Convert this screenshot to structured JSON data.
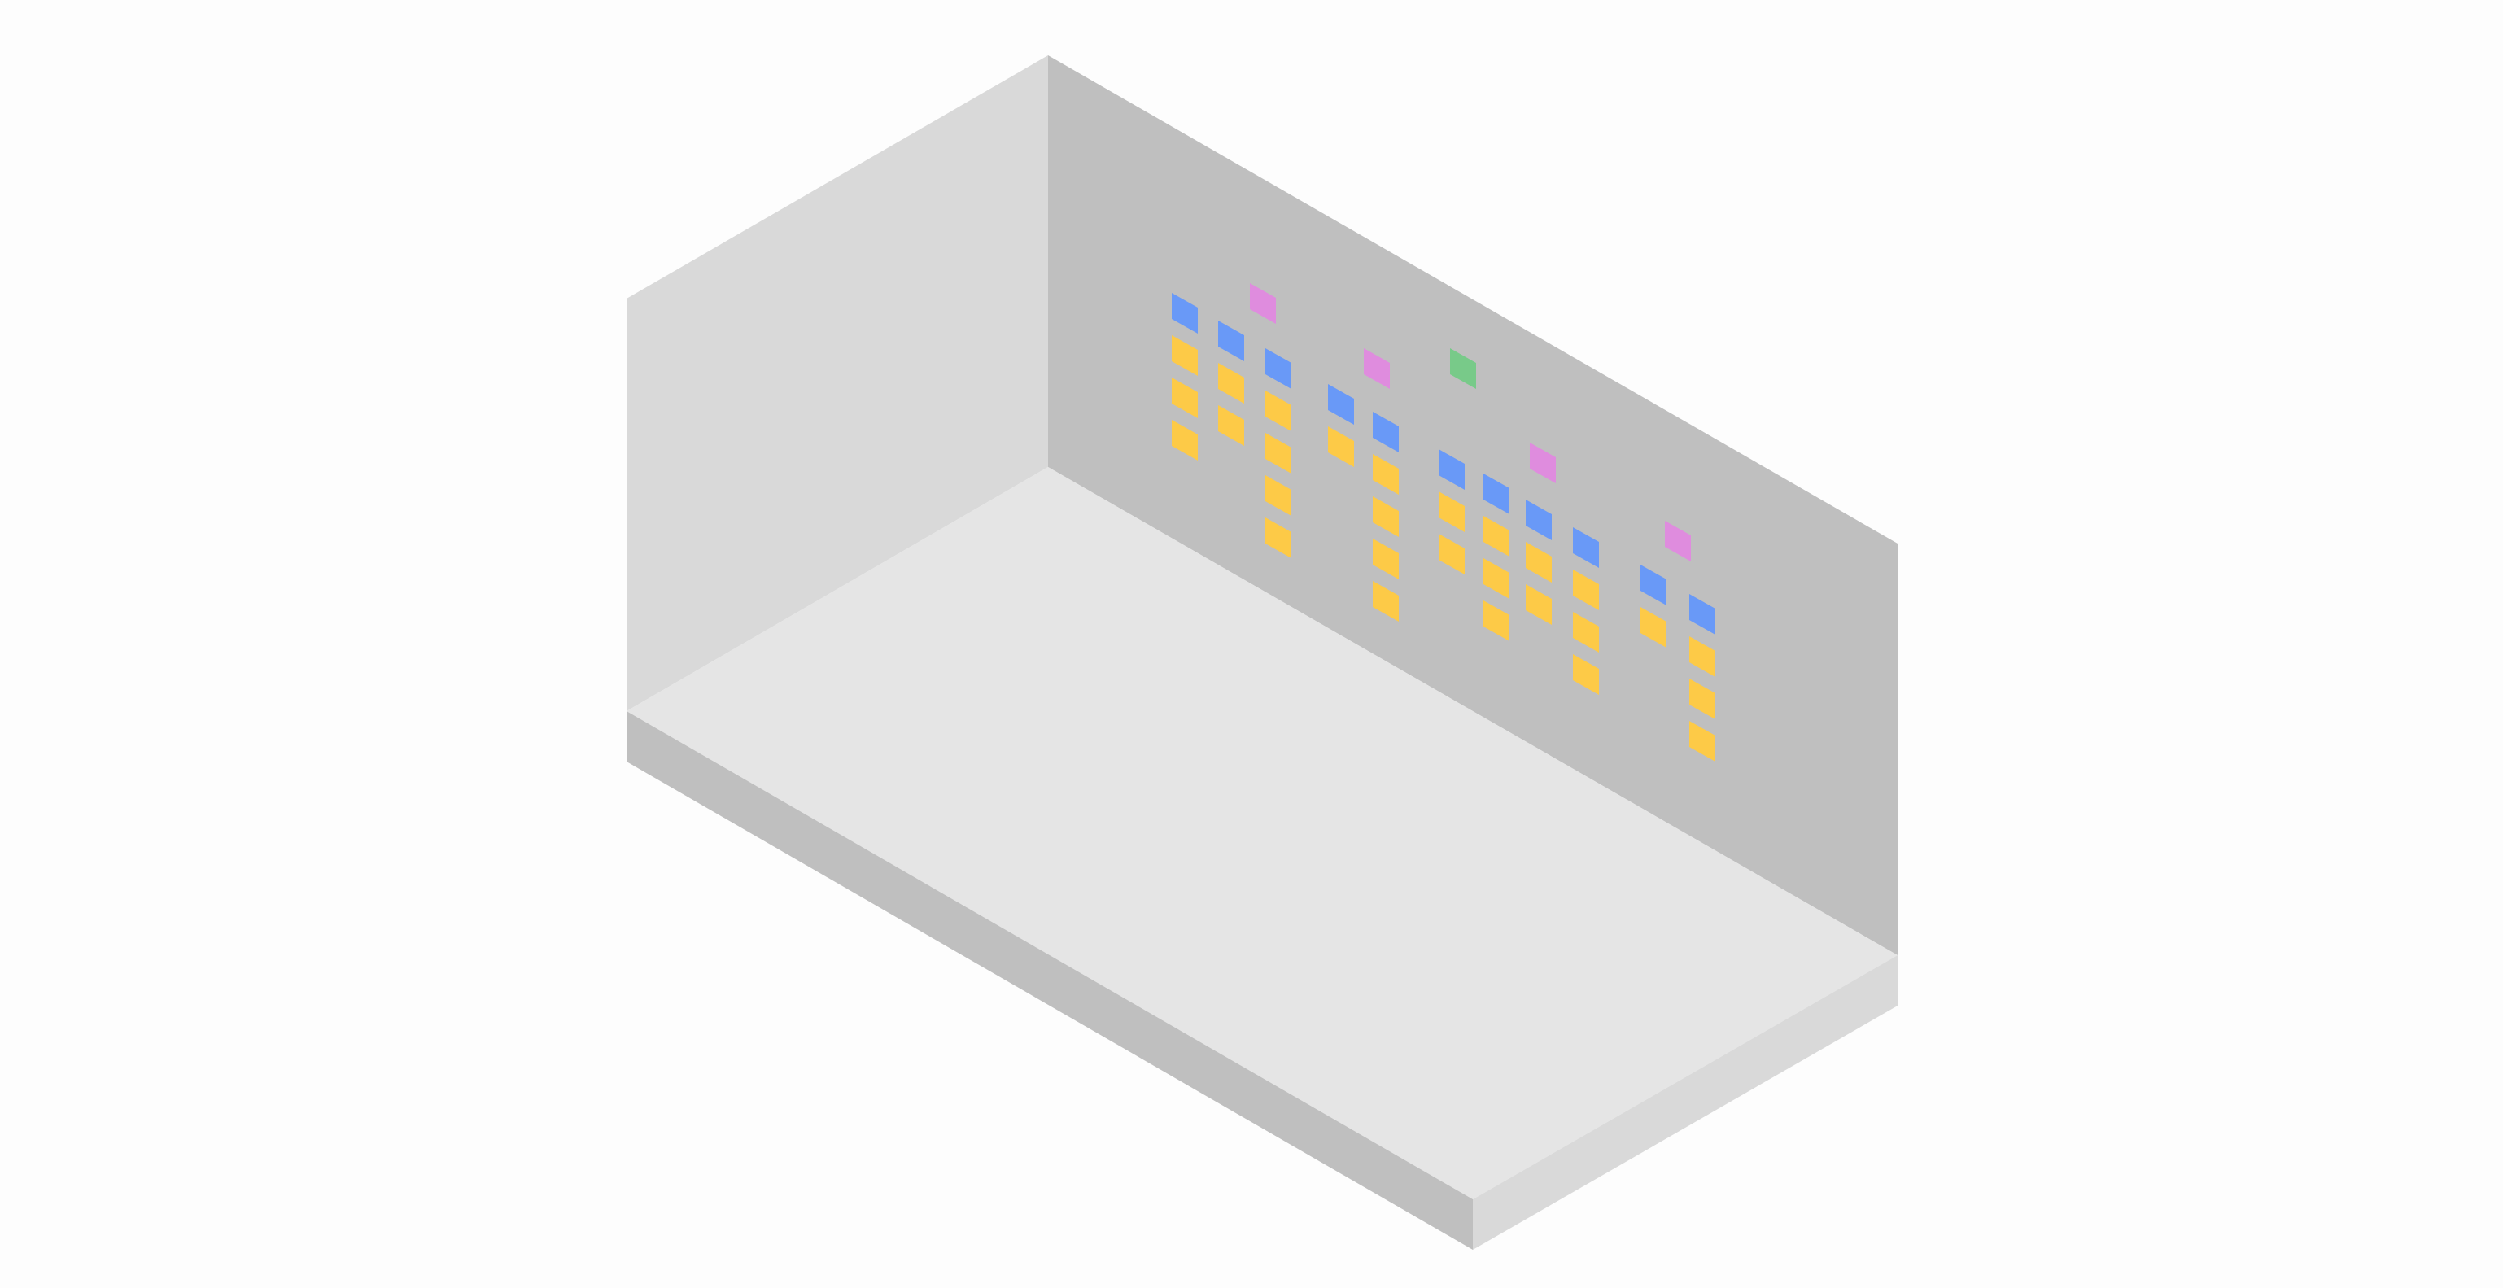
{
  "colors": {
    "background": "#fdfdfd",
    "left_wall": "#d9d9d9",
    "back_wall": "#bfbfbf",
    "floor": "#e5e5e5",
    "slab_side": "#bfbfbf",
    "slab_front": "#d9d9d9",
    "blue": "#6999f7",
    "yellow": "#fdca47",
    "pink": "#df8cde",
    "green": "#78ca89"
  },
  "wall_stickers": [
    [
      "blue",
      "yellow",
      "yellow",
      "yellow"
    ],
    [
      "pink"
    ],
    [
      "blue",
      "yellow",
      "yellow"
    ],
    [
      "blue",
      "yellow",
      "yellow",
      "yellow",
      "yellow"
    ],
    [
      "blue",
      "yellow"
    ],
    [
      "pink"
    ],
    [
      "blue",
      "yellow",
      "yellow",
      "yellow",
      "yellow"
    ],
    [
      "green"
    ],
    [
      "blue",
      "yellow",
      "yellow"
    ],
    [
      "blue",
      "yellow",
      "yellow",
      "yellow"
    ],
    [
      "pink"
    ],
    [
      "blue",
      "yellow",
      "yellow"
    ],
    [
      "blue",
      "yellow",
      "yellow",
      "yellow"
    ],
    [
      "pink"
    ],
    [
      "blue",
      "yellow"
    ],
    [
      "blue",
      "yellow",
      "yellow",
      "yellow"
    ]
  ]
}
